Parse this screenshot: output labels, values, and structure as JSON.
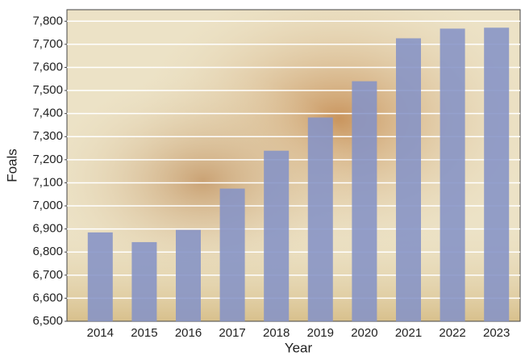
{
  "chart_data": {
    "type": "bar",
    "x_label": "Year",
    "y_label": "Foals",
    "categories": [
      "2014",
      "2015",
      "2016",
      "2017",
      "2018",
      "2019",
      "2020",
      "2021",
      "2022",
      "2023"
    ],
    "values": [
      6885,
      6843,
      6896,
      7075,
      7239,
      7383,
      7540,
      7726,
      7768,
      7772
    ],
    "color": "#8593c6",
    "ylim": [
      6500,
      7850
    ],
    "yticks": [
      {
        "value": 6500,
        "label": "6,500"
      },
      {
        "value": 6600,
        "label": "6,600"
      },
      {
        "value": 6700,
        "label": "6,700"
      },
      {
        "value": 6800,
        "label": "6,800"
      },
      {
        "value": 6900,
        "label": "6,900"
      },
      {
        "value": 7000,
        "label": "7,000"
      },
      {
        "value": 7100,
        "label": "7,100"
      },
      {
        "value": 7200,
        "label": "7,200"
      },
      {
        "value": 7300,
        "label": "7,300"
      },
      {
        "value": 7400,
        "label": "7,400"
      },
      {
        "value": 7500,
        "label": "7,500"
      },
      {
        "value": 7600,
        "label": "7,600"
      },
      {
        "value": 7700,
        "label": "7,700"
      },
      {
        "value": 7800,
        "label": "7,800"
      }
    ],
    "grid": true
  }
}
